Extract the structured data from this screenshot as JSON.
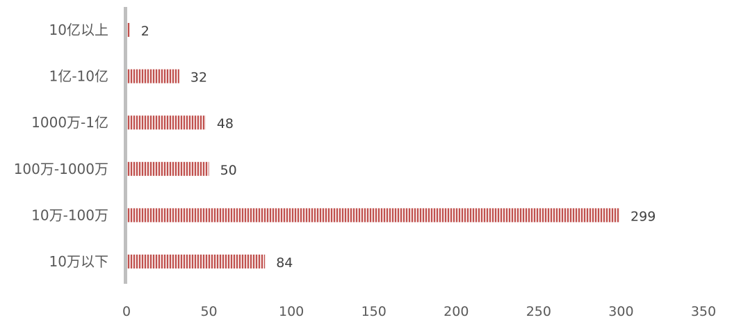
{
  "chart_data": {
    "type": "bar",
    "orientation": "horizontal",
    "categories": [
      "10亿以上",
      "1亿-10亿",
      "1000万-1亿",
      "100万-1000万",
      "10万-100万",
      "10万以下"
    ],
    "values": [
      2,
      32,
      48,
      50,
      299,
      84
    ],
    "data_labels": [
      "2",
      "32",
      "48",
      "50",
      "299",
      "84"
    ],
    "x_ticks": [
      0,
      50,
      100,
      150,
      200,
      250,
      300,
      350
    ],
    "x_tick_labels": [
      "0",
      "50",
      "100",
      "150",
      "200",
      "250",
      "300",
      "350"
    ],
    "xlim": [
      0,
      350
    ],
    "title": "",
    "xlabel": "",
    "ylabel": "",
    "grid": false,
    "legend": "none",
    "colors": {
      "bar_stripe": "#c0504d",
      "bar_gap": "#f2dcdb",
      "axis_line": "#bfbfbf",
      "text": "#595959",
      "label_text": "#404040"
    }
  }
}
